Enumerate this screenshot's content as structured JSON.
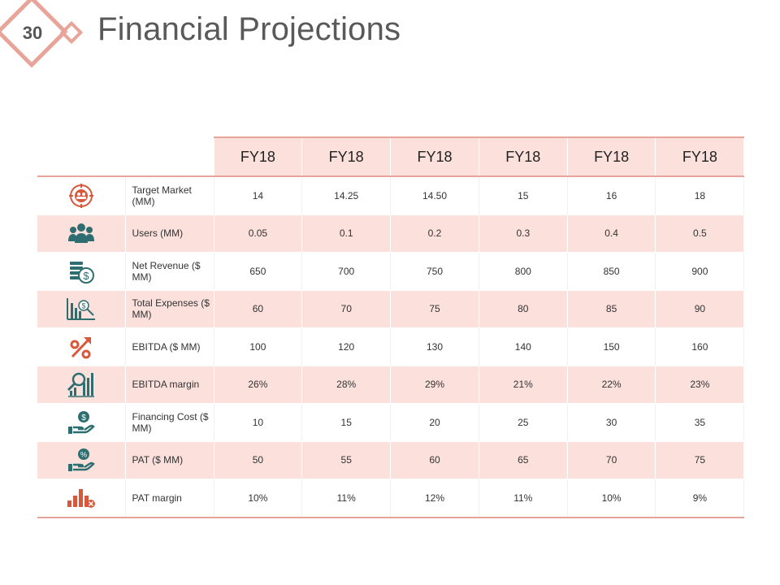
{
  "slide": {
    "number": "30",
    "title": "Financial Projections"
  },
  "colors": {
    "accent": "#e9a49a",
    "row_fill": "#fbe0dc",
    "icon_red": "#d9573b",
    "icon_teal": "#2f6e70"
  },
  "table": {
    "headers": [
      "FY18",
      "FY18",
      "FY18",
      "FY18",
      "FY18",
      "FY18"
    ],
    "rows": [
      {
        "icon": "target-market-icon",
        "label": "Target Market (MM)",
        "values": [
          "14",
          "14.25",
          "14.50",
          "15",
          "16",
          "18"
        ]
      },
      {
        "icon": "users-icon",
        "label": "Users (MM)",
        "values": [
          "0.05",
          "0.1",
          "0.2",
          "0.3",
          "0.4",
          "0.5"
        ]
      },
      {
        "icon": "coins-dollar-icon",
        "label": "Net Revenue ($ MM)",
        "values": [
          "650",
          "700",
          "750",
          "800",
          "850",
          "900"
        ]
      },
      {
        "icon": "expense-chart-icon",
        "label": "Total Expenses ($ MM)",
        "values": [
          "60",
          "70",
          "75",
          "80",
          "85",
          "90"
        ]
      },
      {
        "icon": "percent-arrow-icon",
        "label": "EBITDA ($ MM)",
        "values": [
          "100",
          "120",
          "130",
          "140",
          "150",
          "160"
        ]
      },
      {
        "icon": "magnifier-bars-icon",
        "label": "EBITDA margin",
        "values": [
          "26%",
          "28%",
          "29%",
          "21%",
          "22%",
          "23%"
        ]
      },
      {
        "icon": "hand-dollar-icon",
        "label": "Financing Cost ($ MM)",
        "values": [
          "10",
          "15",
          "20",
          "25",
          "30",
          "35"
        ]
      },
      {
        "icon": "hand-percent-icon",
        "label": "PAT ($ MM)",
        "values": [
          "50",
          "55",
          "60",
          "65",
          "70",
          "75"
        ]
      },
      {
        "icon": "bars-decline-icon",
        "label": "PAT margin",
        "values": [
          "10%",
          "11%",
          "12%",
          "11%",
          "10%",
          "9%"
        ]
      }
    ]
  }
}
